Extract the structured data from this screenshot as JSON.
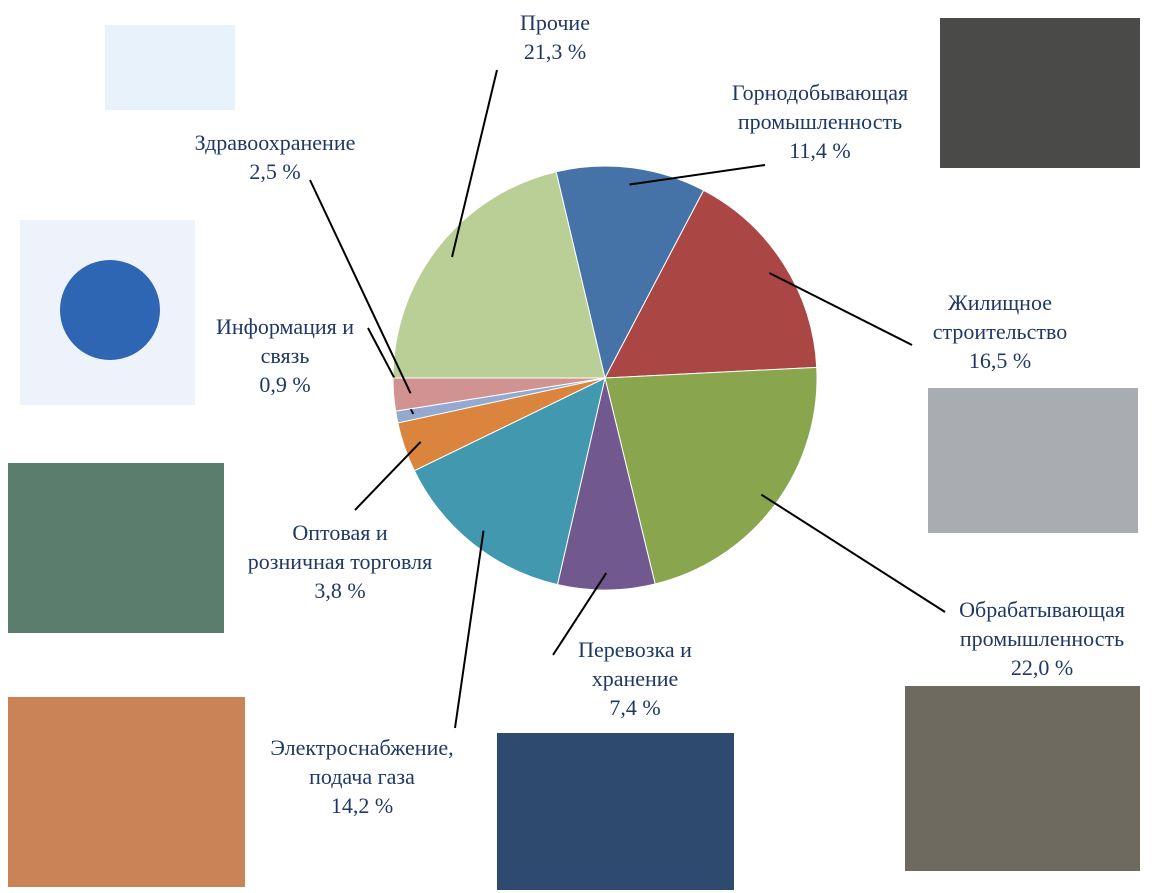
{
  "chart_data": {
    "type": "pie",
    "categories": [
      "Прочие",
      "Горнодобывающая\nпромышленность",
      "Жилищное\nстроительство",
      "Обрабатывающая\nпромышленность",
      "Перевозка и\nхранение",
      "Электроснабжение,\nподача газа",
      "Оптовая и\nрозничная торговля",
      "Информация и\nсвязь",
      "Здравоохранение"
    ],
    "values": [
      21.3,
      11.4,
      16.5,
      22.0,
      7.4,
      14.2,
      3.8,
      0.9,
      2.5
    ],
    "value_labels": [
      "21,3 %",
      "11,4 %",
      "16,5 %",
      "22,0 %",
      "7,4 %",
      "14,2 %",
      "3,8 %",
      "0,9 %",
      "2,5 %"
    ],
    "colors": [
      "#b9cf96",
      "#4573a7",
      "#aa4644",
      "#89a54e",
      "#71588f",
      "#4198af",
      "#db843d",
      "#93a9cf",
      "#d09392"
    ]
  }
}
